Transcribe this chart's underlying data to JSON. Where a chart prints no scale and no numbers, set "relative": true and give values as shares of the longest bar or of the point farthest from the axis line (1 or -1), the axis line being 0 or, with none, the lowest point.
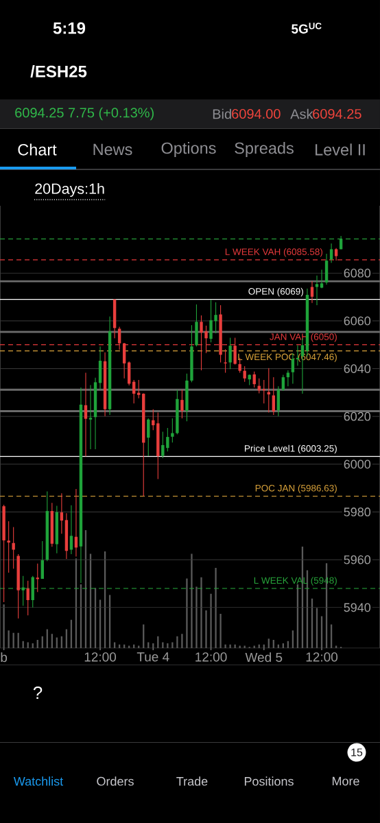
{
  "chart_data": [
    {
      "type": "candlestick",
      "title": "/ESH25",
      "annotations": [
        "5:19",
        "5G$^{UC}$",
        "6094.25 7.75 (+0.13%)",
        "Bid",
        "6094.00",
        "Ask",
        "6094.25",
        "Chart",
        "News",
        "Options",
        "Spreads",
        "Level II",
        "20Days:1h",
        "?",
        "Watchlist",
        "Orders",
        "Trade",
        "Positions",
        "More",
        "15"
      ],
      "categories": [
        "b",
        null,
        null,
        null,
        null,
        null,
        null,
        null,
        null,
        null,
        null,
        null,
        null,
        null,
        null,
        null,
        null,
        null,
        null,
        null,
        "12:00",
        null,
        null,
        null,
        null,
        null,
        null,
        null,
        null,
        null,
        null,
        "Tue 4",
        null,
        null,
        null,
        null,
        null,
        null,
        null,
        null,
        null,
        null,
        null,
        "12:00",
        null,
        null,
        null,
        null,
        null,
        null,
        null,
        null,
        null,
        null,
        "Wed 5",
        null,
        null,
        null,
        null,
        null,
        null,
        null,
        null,
        null,
        null,
        null,
        "12:00",
        null,
        null,
        null,
        null
      ],
      "ohlc": [
        [
          5982.4,
          5983.0,
          5942.2,
          5968.1
        ],
        [
          5968.0,
          5976.1,
          5954.6,
          5967.2
        ],
        [
          5967.0,
          5973.7,
          5956.2,
          5964.2
        ],
        [
          5961.6,
          5962.3,
          5935.4,
          5947.2
        ],
        [
          5947.2,
          5953.2,
          5940.7,
          5948.4
        ],
        [
          5947.9,
          5951.2,
          5936.7,
          5943.1
        ],
        [
          5943.1,
          5953.2,
          5940.0,
          5952.7
        ],
        [
          5952.5,
          5958.4,
          5946.5,
          5951.9
        ],
        [
          5952.0,
          5967.8,
          5952.0,
          5959.8
        ],
        [
          5960.0,
          5988.6,
          5959.4,
          5980.4
        ],
        [
          5980.4,
          5983.8,
          5965.4,
          5966.7
        ],
        [
          5966.5,
          5982.6,
          5962.7,
          5979.9
        ],
        [
          5979.8,
          5987.8,
          5970.9,
          5976.4
        ],
        [
          5976.6,
          5979.5,
          5960.3,
          5963.7
        ],
        [
          5964.2,
          5982.8,
          5962.3,
          5970.0
        ],
        [
          5969.6,
          5989.6,
          5961.3,
          5965.1
        ],
        [
          5965.6,
          6032.1,
          5950.3,
          6024.9
        ],
        [
          6024.7,
          6038.3,
          6003.25,
          6019.0
        ],
        [
          6018.7,
          6033.1,
          6006.3,
          6019.4
        ],
        [
          6019.7,
          6036.2,
          6006.3,
          6034.3
        ],
        [
          6034.0,
          6049.3,
          6031.2,
          6043.3
        ],
        [
          6043.1,
          6046.8,
          6020.1,
          6023.0
        ],
        [
          6023.0,
          6061.8,
          6020.6,
          6055.6
        ],
        [
          6069.0,
          6069.0,
          6052.7,
          6057.0
        ],
        [
          6056.7,
          6057.5,
          6047.9,
          6050.6
        ],
        [
          6050.6,
          6050.8,
          6035.9,
          6042.2
        ],
        [
          6042.6,
          6043.0,
          6033.0,
          6033.7
        ],
        [
          6034.5,
          6035.3,
          6025.4,
          6029.5
        ],
        [
          6029.9,
          6035.3,
          6027.6,
          6029.0
        ],
        [
          6029.5,
          6029.7,
          5986.6,
          6009.0
        ],
        [
          6011.1,
          6019.2,
          6003.4,
          6018.7
        ],
        [
          6018.4,
          6023.0,
          6014.2,
          6016.3
        ],
        [
          6017.1,
          6021.6,
          5993.8,
          6003.4
        ],
        [
          6003.5,
          6013.6,
          6002.5,
          6008.0
        ],
        [
          6006.8,
          6015.2,
          6005.3,
          6011.4
        ],
        [
          6011.5,
          6019.2,
          6009.1,
          6013.0
        ],
        [
          6013.0,
          6031.2,
          6012.5,
          6027.3
        ],
        [
          6026.9,
          6031.2,
          6019.2,
          6022.3
        ],
        [
          6022.3,
          6037.9,
          6018.0,
          6035.0
        ],
        [
          6035.0,
          6058.2,
          6034.3,
          6049.3
        ],
        [
          6049.8,
          6066.9,
          6049.3,
          6059.6
        ],
        [
          6059.6,
          6062.3,
          6039.3,
          6055.1
        ],
        [
          6055.6,
          6058.0,
          6046.5,
          6052.7
        ],
        [
          6052.5,
          6068.8,
          6051.0,
          6060.3
        ],
        [
          6059.9,
          6067.8,
          6054.8,
          6062.5
        ],
        [
          6062.7,
          6066.6,
          6042.6,
          6045.8
        ],
        [
          6042.6,
          6048.1,
          6038.3,
          6042.2
        ],
        [
          6042.6,
          6052.9,
          6039.8,
          6049.6
        ],
        [
          6049.6,
          6052.9,
          6041.7,
          6042.0
        ],
        [
          6041.9,
          6044.5,
          6038.3,
          6039.1
        ],
        [
          6039.1,
          6041.0,
          6034.5,
          6035.9
        ],
        [
          6035.5,
          6037.6,
          6033.1,
          6037.4
        ],
        [
          6037.6,
          6038.8,
          6032.1,
          6033.5
        ],
        [
          6032.8,
          6035.9,
          6029.7,
          6030.9
        ],
        [
          6031.4,
          6035.3,
          6025.4,
          6030.9
        ],
        [
          6030.2,
          6040.2,
          6021.6,
          6029.2
        ],
        [
          6028.8,
          6036.4,
          6020.6,
          6022.1
        ],
        [
          6022.6,
          6032.6,
          6020.1,
          6031.2
        ],
        [
          6031.2,
          6037.4,
          6030.7,
          6036.4
        ],
        [
          6036.4,
          6039.3,
          6032.6,
          6038.3
        ],
        [
          6038.5,
          6046.5,
          6033.7,
          6044.1
        ],
        [
          6043.9,
          6049.8,
          6041.2,
          6044.5
        ],
        [
          6045.2,
          6052.7,
          6029.5,
          6049.8
        ],
        [
          6047.4,
          6073.5,
          6045.2,
          6070.9
        ],
        [
          6074.2,
          6076.6,
          6067.5,
          6070.1
        ],
        [
          6074.2,
          6079.0,
          6066.6,
          6075.4
        ],
        [
          6073.9,
          6081.4,
          6073.7,
          6075.7
        ],
        [
          6076.1,
          6088.1,
          6075.2,
          6085.2
        ],
        [
          6085.7,
          6092.4,
          6084.3,
          6090.0
        ],
        [
          6090.0,
          6090.5,
          6085.2,
          6087.1
        ],
        [
          6090.0,
          6095.6,
          6090.0,
          6094.25
        ]
      ],
      "colors": [
        "#e83e3c",
        "#e83e3c",
        "#e83e3c",
        "#e83e3c",
        "#1fa33a",
        "#e83e3c",
        "#1fa33a",
        "#e83e3c",
        "#1fa33a",
        "#1fa33a",
        "#e83e3c",
        "#1fa33a",
        "#e83e3c",
        "#e83e3c",
        "#1fa33a",
        "#e83e3c",
        "#1fa33a",
        "#e83e3c",
        "#1fa33a",
        "#1fa33a",
        "#1fa33a",
        "#e83e3c",
        "#1fa33a",
        "#e83e3c",
        "#e83e3c",
        "#e83e3c",
        "#e83e3c",
        "#e83e3c",
        "#e83e3c",
        "#e83e3c",
        "#1fa33a",
        "#e83e3c",
        "#e83e3c",
        "#1fa33a",
        "#1fa33a",
        "#1fa33a",
        "#1fa33a",
        "#e83e3c",
        "#1fa33a",
        "#1fa33a",
        "#1fa33a",
        "#e83e3c",
        "#e83e3c",
        "#1fa33a",
        "#1fa33a",
        "#e83e3c",
        "#e83e3c",
        "#1fa33a",
        "#e83e3c",
        "#e83e3c",
        "#e83e3c",
        "#1fa33a",
        "#e83e3c",
        "#e83e3c",
        "#e83e3c",
        "#e83e3c",
        "#e83e3c",
        "#1fa33a",
        "#1fa33a",
        "#1fa33a",
        "#1fa33a",
        "#1fa33a",
        "#1fa33a",
        "#1fa33a",
        "#e83e3c",
        "#1fa33a",
        "#1fa33a",
        "#1fa33a",
        "#1fa33a",
        "#e83e3c",
        "#1fa33a"
      ],
      "ylim": [
        5923,
        6108.2
      ],
      "yticks": [
        5940,
        5960,
        5980,
        6000,
        6020,
        6040,
        6060,
        6080
      ],
      "grid": "y",
      "ref_lines": [
        {
          "axis": "y",
          "value": 6085.58,
          "label": "L WEEK VAH (6085.58)",
          "color": "#e5393b",
          "line_style": "dashed"
        },
        {
          "axis": "y",
          "value": 6050,
          "label": "JAN VAH (6050)",
          "color": "#e5393b",
          "line_style": "dashed"
        },
        {
          "axis": "y",
          "value": 6047.46,
          "label": "L WEEK POC (6047.46)",
          "color": "#d9a23a",
          "line_style": "dashed"
        },
        {
          "axis": "y",
          "value": 5986.63,
          "label": "POC JAN (5986.63)",
          "color": "#d9a23a",
          "line_style": "dashed"
        },
        {
          "axis": "y",
          "value": 5948,
          "label": "L WEEK VAL (5948)",
          "color": "#27a33a",
          "line_style": "dashed"
        },
        {
          "axis": "y",
          "value": 6069,
          "label": "OPEN (6069)",
          "color": "#ffffff"
        },
        {
          "axis": "y",
          "value": 6003.25,
          "label": "Price Level1 (6003.25)",
          "color": "#ffffff"
        },
        {
          "axis": "y",
          "value": 6022.2,
          "color": "#6b6b6b"
        },
        {
          "axis": "y",
          "value": 6031.2,
          "color": "#6b6b6b"
        },
        {
          "axis": "y",
          "value": 6055.4,
          "color": "#6b6b6b"
        },
        {
          "axis": "y",
          "value": 6076.6,
          "color": "#6b6b6b"
        },
        {
          "axis": "y",
          "value": 6094.3,
          "color": "#27a33a",
          "line_style": "dashed"
        }
      ]
    },
    {
      "type": "bar",
      "relative": true,
      "color": "#5a5a5a",
      "categories": [
        null,
        null,
        null,
        null,
        null,
        null,
        null,
        null,
        null,
        null,
        null,
        null,
        null,
        null,
        null,
        null,
        null,
        null,
        null,
        null,
        null,
        null,
        null,
        null,
        null,
        null,
        null,
        null,
        null,
        null,
        null,
        null,
        null,
        null,
        null,
        null,
        null,
        null,
        null,
        null,
        null,
        null,
        null,
        null,
        null,
        null,
        null,
        null,
        null,
        null,
        null,
        null,
        null,
        null,
        null,
        null,
        null,
        null,
        null,
        null,
        null,
        null,
        null,
        null,
        null,
        null,
        null,
        null,
        null,
        null,
        null
      ],
      "values": [
        0.37,
        0.15,
        0.13,
        0.13,
        0.06,
        0.05,
        0.04,
        0.07,
        0.1,
        0.16,
        0.12,
        0.09,
        0.1,
        0.16,
        0.24,
        0.76,
        0.54,
        1,
        0.8,
        0.51,
        0.41,
        0.82,
        0.45,
        0.05,
        0.03,
        0.03,
        0.02,
        0.03,
        0.02,
        0.2,
        0.05,
        0.04,
        0.1,
        0.05,
        0.04,
        0.05,
        0.1,
        0.12,
        0.59,
        0.8,
        0.52,
        0.6,
        0.32,
        0.46,
        0.68,
        0.29,
        0.03,
        0.03,
        0.03,
        0.02,
        0.02,
        0.01,
        0.02,
        0.03,
        0.03,
        0.08,
        0.07,
        0.03,
        0.04,
        0.06,
        0.15,
        0.54,
        0.86,
        0.66,
        0.42,
        0.34,
        0.27,
        0.72,
        0.2,
        0.02,
        0.01
      ]
    }
  ]
}
